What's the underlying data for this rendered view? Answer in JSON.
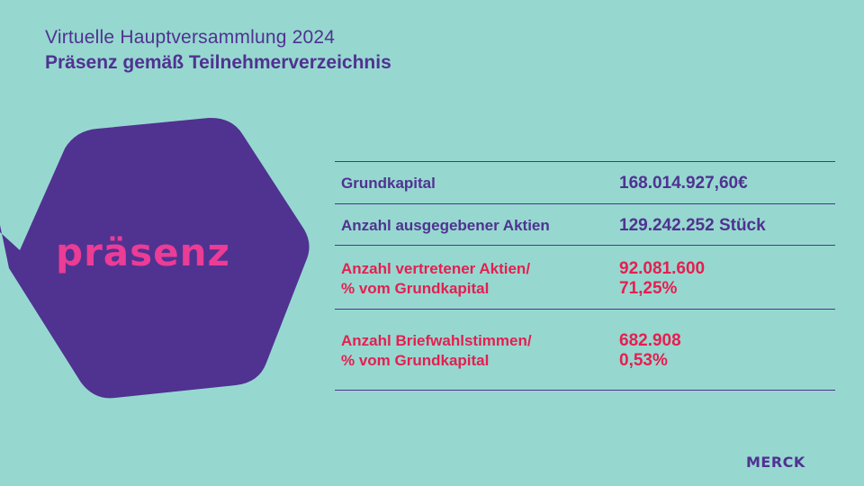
{
  "header": {
    "title": "Virtuelle Hauptversammlung 2024",
    "subtitle": "Präsenz gemäß Teilnehmerverzeichnis"
  },
  "graphic": {
    "word": "präsenz",
    "shape_color": "#503291",
    "word_color": "#eb3c96"
  },
  "table": {
    "rows": [
      {
        "label": "Grundkapital",
        "value": "168.014.927,60€",
        "color": "purple"
      },
      {
        "label": "Anzahl ausgegebener Aktien",
        "value": "129.242.252 Stück",
        "color": "purple"
      },
      {
        "label_line1": "Anzahl vertretener Aktien/",
        "label_line2": "% vom Grundkapital",
        "value_line1": "92.081.600",
        "value_line2": "71,25%",
        "color": "pink"
      },
      {
        "label_line1": "Anzahl Briefwahlstimmen/",
        "label_line2": "% vom Grundkapital",
        "value_line1": "682.908",
        "value_line2": "0,53%",
        "color": "pink"
      }
    ]
  },
  "logo": {
    "text": "MERCK"
  },
  "colors": {
    "background": "#96d8d0",
    "purple": "#503291",
    "pink": "#e61e50"
  }
}
